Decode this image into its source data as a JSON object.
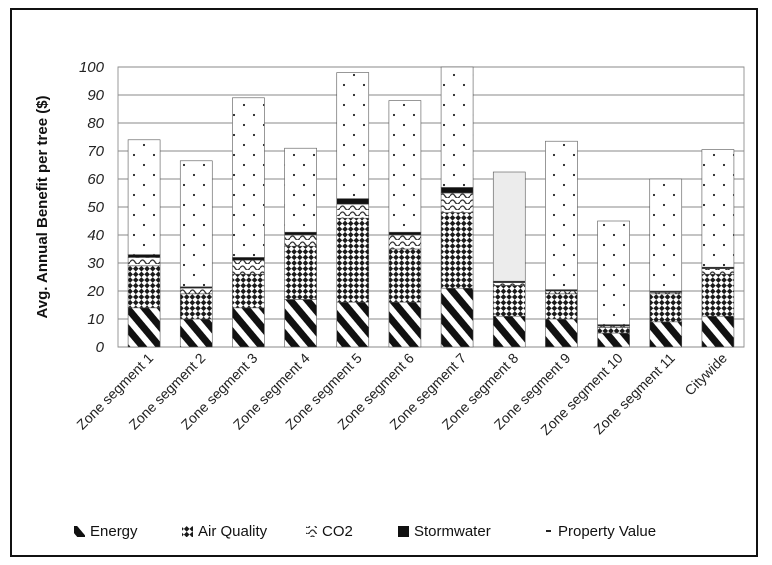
{
  "chart_data": {
    "type": "bar",
    "stacked": true,
    "ylabel": "Avg. Annual Benefit per tree ($)",
    "ylim": [
      0,
      100
    ],
    "yticks": [
      0,
      10,
      20,
      30,
      40,
      50,
      60,
      70,
      80,
      90,
      100
    ],
    "grid": true,
    "legend_position": "bottom",
    "categories": [
      "Zone segment 1",
      "Zone segment 2",
      "Zone segment 3",
      "Zone segment 4",
      "Zone segment 5",
      "Zone segment 6",
      "Zone segment 7",
      "Zone segment 8",
      "Zone segment 9",
      "Zone segment 10",
      "Zone segment 11",
      "Citywide"
    ],
    "series": [
      {
        "name": "Energy",
        "pattern": "diagonal-stripes",
        "values": [
          14,
          10,
          14,
          17,
          16,
          16,
          21,
          11,
          10,
          5,
          9,
          11
        ]
      },
      {
        "name": "Air Quality",
        "pattern": "checker",
        "values": [
          15,
          9,
          12,
          19,
          30,
          19,
          27,
          11,
          9,
          2,
          10,
          15
        ]
      },
      {
        "name": "CO2",
        "pattern": "wavy",
        "values": [
          3,
          2,
          5,
          4,
          5,
          5,
          7,
          1,
          1,
          0.5,
          0.5,
          2
        ]
      },
      {
        "name": "Stormwater",
        "pattern": "solid-black",
        "values": [
          1,
          0.5,
          1,
          1,
          2,
          1,
          2,
          0.5,
          0.5,
          0.5,
          0.5,
          0.5
        ]
      },
      {
        "name": "Property Value",
        "pattern": "dots",
        "values": [
          41,
          45,
          57,
          30,
          45,
          47,
          43,
          39,
          53,
          37,
          40,
          42
        ]
      }
    ]
  }
}
